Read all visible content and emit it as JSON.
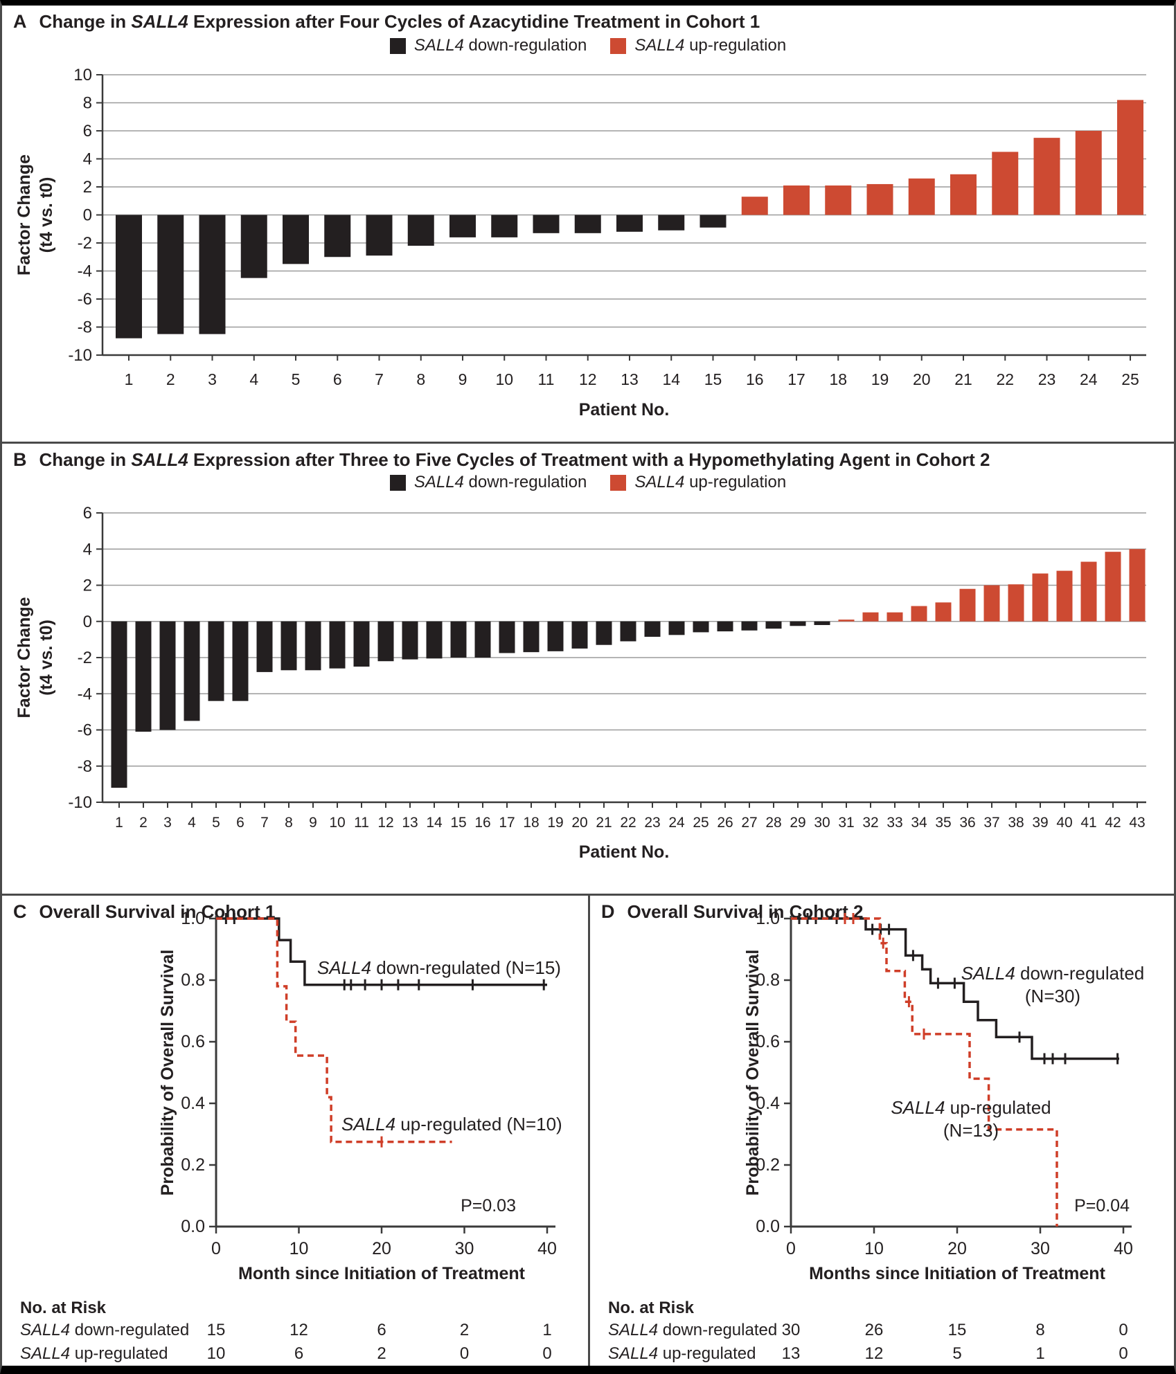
{
  "figure": {
    "panels": {
      "a": {
        "letter": "A",
        "title": "Change in SALL4 Expression after Four Cycles of Azacytidine Treatment in Cohort 1"
      },
      "b": {
        "letter": "B",
        "title": "Change in SALL4 Expression after Three to Five Cycles of Treatment with a Hypomethylating Agent in Cohort 2"
      },
      "c": {
        "letter": "C",
        "title": "Overall Survival in Cohort 1"
      },
      "d": {
        "letter": "D",
        "title": "Overall Survival in Cohort 2"
      }
    }
  },
  "legend": {
    "down": "SALL4 down-regulation",
    "up": "SALL4 up-regulation"
  },
  "colors": {
    "down": "#231f20",
    "up": "#cd4a32",
    "red_line": "#cf3e28",
    "axis": "#3a3a3a",
    "grid": "#9b9b9b",
    "text": "#231f20"
  },
  "chart_data": [
    {
      "id": "a",
      "type": "bar",
      "title": "Change in SALL4 Expression after Four Cycles of Azacytidine Treatment in Cohort 1",
      "xlabel": "Patient No.",
      "ylabel": "Factor Change (t4 vs. t0)",
      "ylabel_lines": [
        "Factor Change",
        "(t4 vs. t0)"
      ],
      "ylim": [
        -10,
        10
      ],
      "yticks": [
        10,
        8,
        6,
        4,
        2,
        0,
        -2,
        -4,
        -6,
        -8,
        -10
      ],
      "legend": [
        "SALL4 down-regulation",
        "SALL4 up-regulation"
      ],
      "categories": [
        1,
        2,
        3,
        4,
        5,
        6,
        7,
        8,
        9,
        10,
        11,
        12,
        13,
        14,
        15,
        16,
        17,
        18,
        19,
        20,
        21,
        22,
        23,
        24,
        25
      ],
      "values": [
        -8.8,
        -8.5,
        -8.5,
        -4.5,
        -3.5,
        -3.0,
        -2.9,
        -2.2,
        -1.6,
        -1.6,
        -1.3,
        -1.3,
        -1.2,
        -1.1,
        -0.9,
        1.3,
        2.1,
        2.1,
        2.2,
        2.6,
        2.9,
        4.5,
        5.5,
        6.0,
        8.2
      ]
    },
    {
      "id": "b",
      "type": "bar",
      "title": "Change in SALL4 Expression after Three to Five Cycles of Treatment with a Hypomethylating Agent in Cohort 2",
      "xlabel": "Patient No.",
      "ylabel": "Factor Change (t4 vs. t0)",
      "ylabel_lines": [
        "Factor Change",
        "(t4 vs. t0)"
      ],
      "ylim": [
        -10,
        6
      ],
      "yticks": [
        6,
        4,
        2,
        0,
        -2,
        -4,
        -6,
        -8,
        -10
      ],
      "legend": [
        "SALL4 down-regulation",
        "SALL4 up-regulation"
      ],
      "categories": [
        1,
        2,
        3,
        4,
        5,
        6,
        7,
        8,
        9,
        10,
        11,
        12,
        13,
        14,
        15,
        16,
        17,
        18,
        19,
        20,
        21,
        22,
        23,
        24,
        25,
        26,
        27,
        28,
        29,
        30,
        31,
        32,
        33,
        34,
        35,
        36,
        37,
        38,
        39,
        40,
        41,
        42,
        43
      ],
      "values": [
        -9.2,
        -6.1,
        -6.0,
        -5.5,
        -4.4,
        -4.4,
        -2.8,
        -2.7,
        -2.7,
        -2.6,
        -2.5,
        -2.2,
        -2.1,
        -2.05,
        -2.0,
        -2.0,
        -1.75,
        -1.7,
        -1.65,
        -1.5,
        -1.3,
        -1.1,
        -0.85,
        -0.75,
        -0.6,
        -0.55,
        -0.5,
        -0.4,
        -0.25,
        -0.2,
        0.1,
        0.5,
        0.5,
        0.85,
        1.05,
        1.8,
        2.0,
        2.05,
        2.65,
        2.8,
        3.3,
        3.85,
        4.0
      ]
    },
    {
      "id": "c",
      "type": "line",
      "title": "Overall Survival in Cohort 1",
      "xlabel": "Month since Initiation of Treatment",
      "ylabel": "Probability of Overall Survival",
      "xlim": [
        0,
        40
      ],
      "ylim": [
        0.0,
        1.0
      ],
      "xtick_labels": [
        "0",
        "10",
        "20",
        "30",
        "40"
      ],
      "ytick_labels": [
        "1.0",
        "0.8",
        "0.6",
        "0.4",
        "0.2",
        "0.0"
      ],
      "p_value": "P=0.03",
      "series": [
        {
          "name": "SALL4 down-regulated (N=15)",
          "label_lines": [
            "SALL4 down-regulated (N=15)"
          ],
          "style": "solid",
          "steps": [
            [
              0,
              1.0
            ],
            [
              7.6,
              1.0
            ],
            [
              7.6,
              0.93
            ],
            [
              9.0,
              0.93
            ],
            [
              9.0,
              0.86
            ],
            [
              10.7,
              0.86
            ],
            [
              10.7,
              0.785
            ],
            [
              40,
              0.785
            ]
          ],
          "censors": [
            1.2,
            2.2,
            15.5,
            16.3,
            18,
            20,
            22,
            24.5,
            31,
            39.6
          ]
        },
        {
          "name": "SALL4 up-regulated (N=10)",
          "label_lines": [
            "SALL4 up-regulated (N=10)"
          ],
          "style": "dashed",
          "steps": [
            [
              0,
              1.0
            ],
            [
              7.4,
              1.0
            ],
            [
              7.4,
              0.78
            ],
            [
              8.5,
              0.78
            ],
            [
              8.5,
              0.665
            ],
            [
              9.6,
              0.665
            ],
            [
              9.6,
              0.555
            ],
            [
              13.4,
              0.555
            ],
            [
              13.4,
              0.42
            ],
            [
              13.9,
              0.42
            ],
            [
              13.9,
              0.275
            ],
            [
              28.5,
              0.275
            ]
          ],
          "censors": [
            20
          ]
        }
      ],
      "risk_table": {
        "heading": "No. at Risk",
        "months": [
          0,
          10,
          20,
          30,
          40
        ],
        "rows": [
          {
            "label": "SALL4 down-regulated",
            "counts": [
              15,
              12,
              6,
              2,
              1
            ]
          },
          {
            "label": "SALL4 up-regulated",
            "counts": [
              10,
              6,
              2,
              0,
              0
            ]
          }
        ]
      }
    },
    {
      "id": "d",
      "type": "line",
      "title": "Overall Survival in Cohort 2",
      "xlabel": "Months since Initiation of Treatment",
      "ylabel": "Probability of Overall Survival",
      "xlim": [
        0,
        40
      ],
      "ylim": [
        0.0,
        1.0
      ],
      "xtick_labels": [
        "0",
        "10",
        "20",
        "30",
        "40"
      ],
      "ytick_labels": [
        "1.0",
        "0.8",
        "0.6",
        "0.4",
        "0.2",
        "0.0"
      ],
      "p_value": "P=0.04",
      "series": [
        {
          "name": "SALL4 down-regulated (N=30)",
          "label_lines": [
            "SALL4 down-regulated",
            "(N=30)"
          ],
          "style": "solid",
          "steps": [
            [
              0,
              1.0
            ],
            [
              9,
              1.0
            ],
            [
              9,
              0.965
            ],
            [
              13.8,
              0.965
            ],
            [
              13.8,
              0.88
            ],
            [
              15.8,
              0.88
            ],
            [
              15.8,
              0.835
            ],
            [
              16.8,
              0.835
            ],
            [
              16.8,
              0.79
            ],
            [
              20.8,
              0.79
            ],
            [
              20.8,
              0.73
            ],
            [
              22.5,
              0.73
            ],
            [
              22.5,
              0.67
            ],
            [
              24.7,
              0.67
            ],
            [
              24.7,
              0.615
            ],
            [
              29,
              0.615
            ],
            [
              29,
              0.545
            ],
            [
              39.5,
              0.545
            ]
          ],
          "censors": [
            1,
            2,
            3,
            5.5,
            6.5,
            7.5,
            9.8,
            10.8,
            11.8,
            14.7,
            17.7,
            19.7,
            27.5,
            30.5,
            31.5,
            33,
            39.3
          ]
        },
        {
          "name": "SALL4 up-regulated (N=13)",
          "label_lines": [
            "SALL4 up-regulated",
            "(N=13)"
          ],
          "style": "dashed",
          "steps": [
            [
              0,
              1.0
            ],
            [
              10.7,
              1.0
            ],
            [
              10.7,
              0.92
            ],
            [
              11.5,
              0.92
            ],
            [
              11.5,
              0.83
            ],
            [
              13.7,
              0.83
            ],
            [
              13.7,
              0.73
            ],
            [
              14.6,
              0.73
            ],
            [
              14.6,
              0.625
            ],
            [
              21.5,
              0.625
            ],
            [
              21.5,
              0.48
            ],
            [
              23.8,
              0.48
            ],
            [
              23.8,
              0.315
            ],
            [
              32,
              0.315
            ],
            [
              32,
              0.0
            ]
          ],
          "censors": [
            6.5,
            7.5,
            11.1,
            14.2,
            16
          ]
        }
      ],
      "risk_table": {
        "heading": "No. at Risk",
        "months": [
          0,
          10,
          20,
          30,
          40
        ],
        "rows": [
          {
            "label": "SALL4 down-regulated",
            "counts": [
              30,
              26,
              15,
              8,
              0
            ]
          },
          {
            "label": "SALL4 up-regulated",
            "counts": [
              13,
              12,
              5,
              1,
              0
            ]
          }
        ]
      }
    }
  ]
}
